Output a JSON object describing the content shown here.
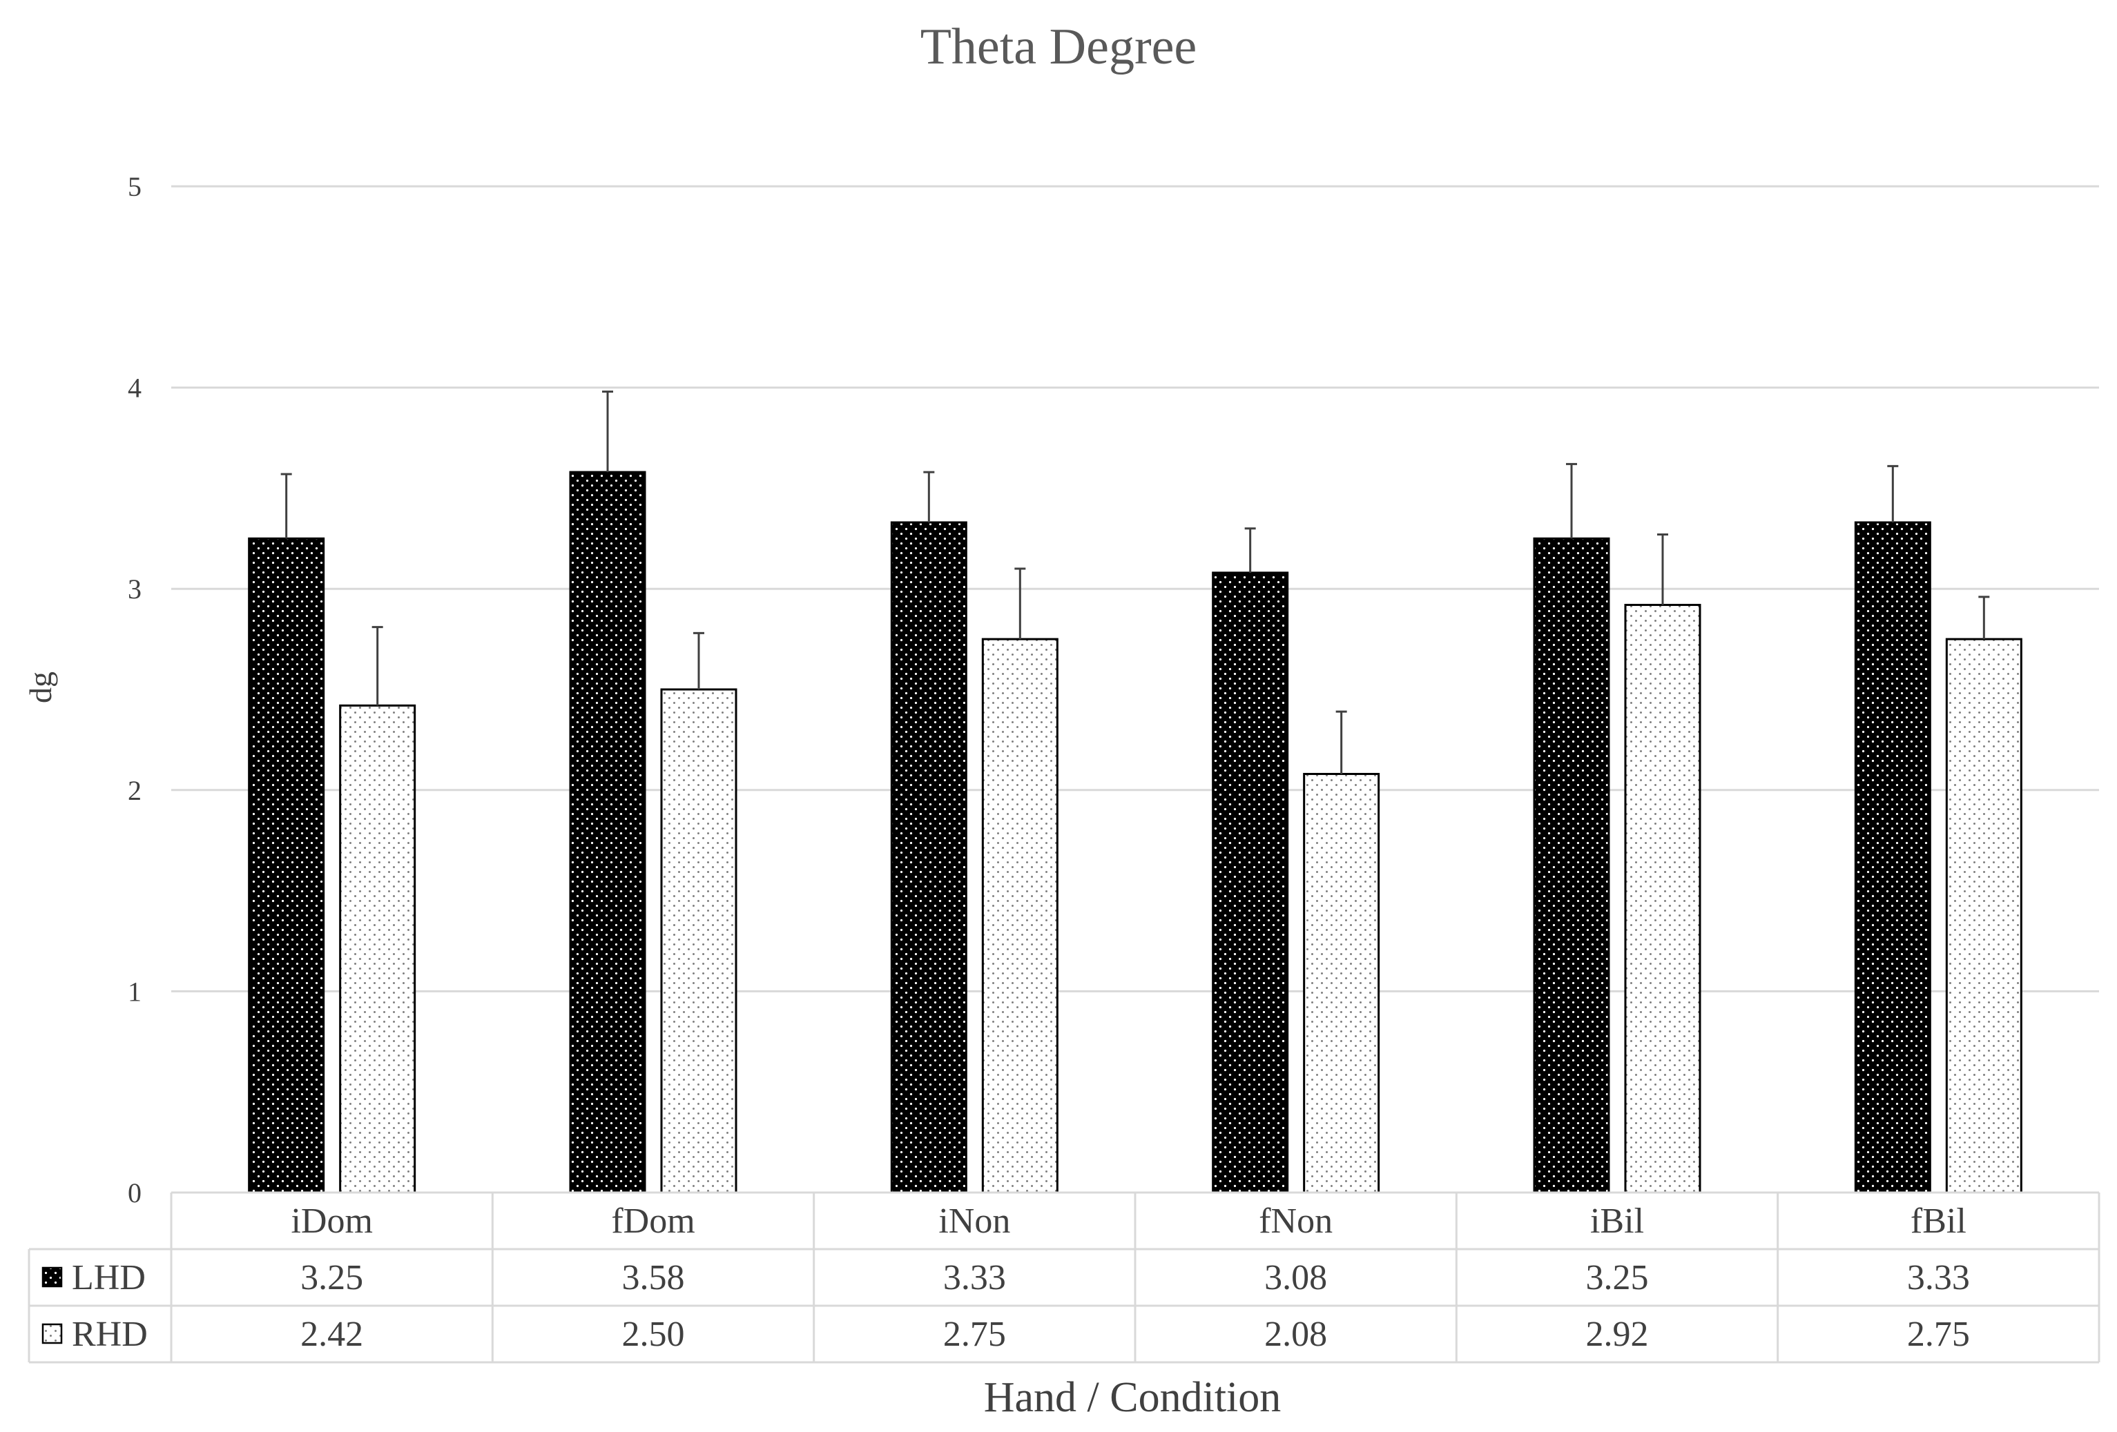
{
  "chart_data": {
    "type": "bar",
    "title": "Theta Degree",
    "ylabel": "dg",
    "xlabel": "Hand / Condition",
    "ylim": [
      0,
      5
    ],
    "yticks": [
      "0",
      "1",
      "2",
      "3",
      "4",
      "5"
    ],
    "grid": true,
    "legend_placement": "data-table-left",
    "categories": [
      "iDom",
      "fDom",
      "iNon",
      "fNon",
      "iBil",
      "fBil"
    ],
    "series": [
      {
        "name": "LHD",
        "values": [
          3.25,
          3.58,
          3.33,
          3.08,
          3.25,
          3.33
        ],
        "labels": [
          "3.25",
          "3.58",
          "3.33",
          "3.08",
          "3.25",
          "3.33"
        ],
        "error_upper": [
          3.57,
          3.98,
          3.58,
          3.3,
          3.62,
          3.61
        ],
        "fill": "#000000",
        "dot": "#ffffff"
      },
      {
        "name": "RHD",
        "values": [
          2.42,
          2.5,
          2.75,
          2.08,
          2.92,
          2.75
        ],
        "labels": [
          "2.42",
          "2.50",
          "2.75",
          "2.08",
          "2.92",
          "2.75"
        ],
        "error_upper": [
          2.81,
          2.78,
          3.1,
          2.39,
          3.27,
          2.96
        ],
        "fill": "#ffffff",
        "dot": "#7f7f7f"
      }
    ]
  }
}
